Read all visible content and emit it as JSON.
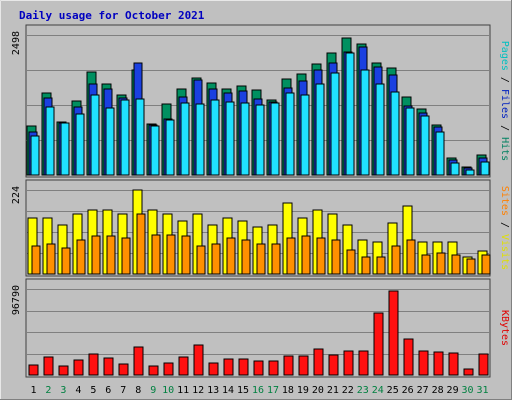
{
  "chart_data": {
    "type": "bar",
    "title": "Daily usage for October 2021",
    "categories": [
      "1",
      "2",
      "3",
      "4",
      "5",
      "6",
      "7",
      "8",
      "9",
      "10",
      "11",
      "12",
      "13",
      "14",
      "15",
      "16",
      "17",
      "18",
      "19",
      "20",
      "21",
      "22",
      "23",
      "24",
      "25",
      "26",
      "27",
      "28",
      "29",
      "30",
      "31"
    ],
    "weekend_days": [
      "2",
      "3",
      "9",
      "10",
      "16",
      "17",
      "23",
      "24",
      "30",
      "31"
    ],
    "panels": [
      {
        "id": "hits",
        "ymax": 2498,
        "ymax_label": "2498",
        "axis_label_parts": [
          {
            "text": "Pages",
            "color": "#00c0c0"
          },
          {
            "text": "Files",
            "color": "#0020c0"
          },
          {
            "text": "Hits",
            "color": "#008060"
          }
        ],
        "series": [
          {
            "name": "Hits",
            "color": "#009060",
            "values": [
              870,
              1470,
              950,
              1320,
              1830,
              1620,
              1420,
              1870,
              910,
              1270,
              1540,
              1730,
              1650,
              1540,
              1580,
              1510,
              1330,
              1720,
              1810,
              1980,
              2180,
              2450,
              2340,
              1990,
              1910,
              1400,
              1180,
              890,
              300,
              150,
              350
            ]
          },
          {
            "name": "Files",
            "color": "#1a40e0",
            "values": [
              760,
              1370,
              930,
              1210,
              1620,
              1530,
              1370,
              2000,
              890,
              1000,
              1390,
              1700,
              1530,
              1470,
              1500,
              1350,
              1310,
              1550,
              1680,
              1870,
              1990,
              2190,
              2280,
              1930,
              1790,
              1240,
              1110,
              860,
              270,
              130,
              310
            ]
          },
          {
            "name": "Pages",
            "color": "#20e0ff",
            "values": [
              700,
              1210,
              920,
              1090,
              1420,
              1200,
              1340,
              1350,
              870,
              990,
              1280,
              1260,
              1330,
              1300,
              1280,
              1250,
              1280,
              1470,
              1420,
              1620,
              1820,
              2180,
              1870,
              1620,
              1480,
              1200,
              1060,
              760,
              210,
              90,
              240
            ]
          }
        ]
      },
      {
        "id": "visits",
        "ymax": 224,
        "ymax_label": "224",
        "axis_label_parts": [
          {
            "text": "Sites",
            "color": "#ff8000"
          },
          {
            "text": "Visits",
            "color": "#e0e000"
          }
        ],
        "series": [
          {
            "name": "Visits",
            "color": "#ffff00",
            "values": [
              150,
              150,
              130,
              160,
              170,
              170,
              160,
              224,
              170,
              160,
              140,
              160,
              130,
              150,
              140,
              125,
              130,
              190,
              150,
              170,
              160,
              130,
              90,
              85,
              135,
              180,
              85,
              85,
              85,
              45,
              60
            ]
          },
          {
            "name": "Sites",
            "color": "#ff9000",
            "values": [
              75,
              80,
              70,
              90,
              100,
              100,
              95,
              160,
              105,
              105,
              100,
              75,
              80,
              95,
              90,
              80,
              80,
              95,
              100,
              95,
              90,
              65,
              45,
              45,
              75,
              90,
              50,
              55,
              50,
              40,
              50
            ]
          }
        ]
      },
      {
        "id": "kbytes",
        "ymax": 96790,
        "ymax_label": "96790",
        "axis_label_parts": [
          {
            "text": "KBytes",
            "color": "#e00000"
          }
        ],
        "series": [
          {
            "name": "KBytes",
            "color": "#ff1010",
            "values": [
              11000,
              20500,
              10500,
              17000,
              24000,
              19000,
              12500,
              32000,
              10000,
              13500,
              20500,
              33500,
              13500,
              18000,
              18500,
              16000,
              16000,
              21000,
              21500,
              29000,
              23000,
              27000,
              26500,
              70000,
              95000,
              40000,
              27000,
              26000,
              24500,
              7000,
              23500
            ]
          }
        ]
      }
    ]
  }
}
